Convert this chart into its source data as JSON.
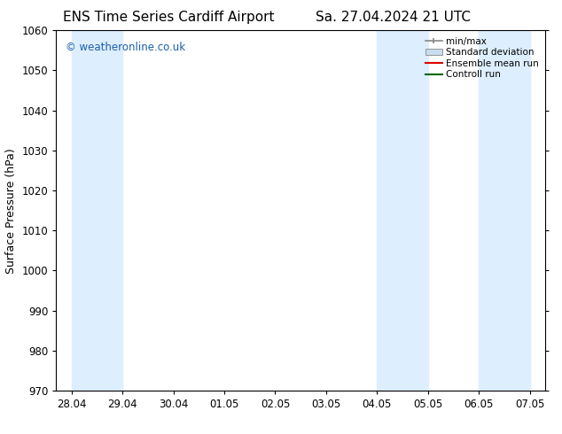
{
  "title_left": "ENS Time Series Cardiff Airport",
  "title_right": "Sa. 27.04.2024 21 UTC",
  "ylabel": "Surface Pressure (hPa)",
  "ylim": [
    970,
    1060
  ],
  "yticks": [
    970,
    980,
    990,
    1000,
    1010,
    1020,
    1030,
    1040,
    1050,
    1060
  ],
  "xtick_labels": [
    "28.04",
    "29.04",
    "30.04",
    "01.05",
    "02.05",
    "03.05",
    "04.05",
    "05.05",
    "06.05",
    "07.05"
  ],
  "shaded_bands": [
    {
      "xstart": 0.0,
      "xend": 1.0
    },
    {
      "xstart": 6.0,
      "xend": 7.0
    },
    {
      "xstart": 8.0,
      "xend": 9.0
    }
  ],
  "band_color": "#ddeeff",
  "watermark": "© weatheronline.co.uk",
  "watermark_color": "#1a5faa",
  "bg_color": "#ffffff",
  "plot_bg_color": "#ffffff",
  "legend_labels": [
    "min/max",
    "Standard deviation",
    "Ensemble mean run",
    "Controll run"
  ],
  "minmax_color": "#888888",
  "std_color": "#c8ddf0",
  "ens_color": "#dd0000",
  "ctrl_color": "#006600",
  "title_fontsize": 11,
  "axis_label_fontsize": 9,
  "tick_fontsize": 8.5,
  "legend_fontsize": 7.5
}
